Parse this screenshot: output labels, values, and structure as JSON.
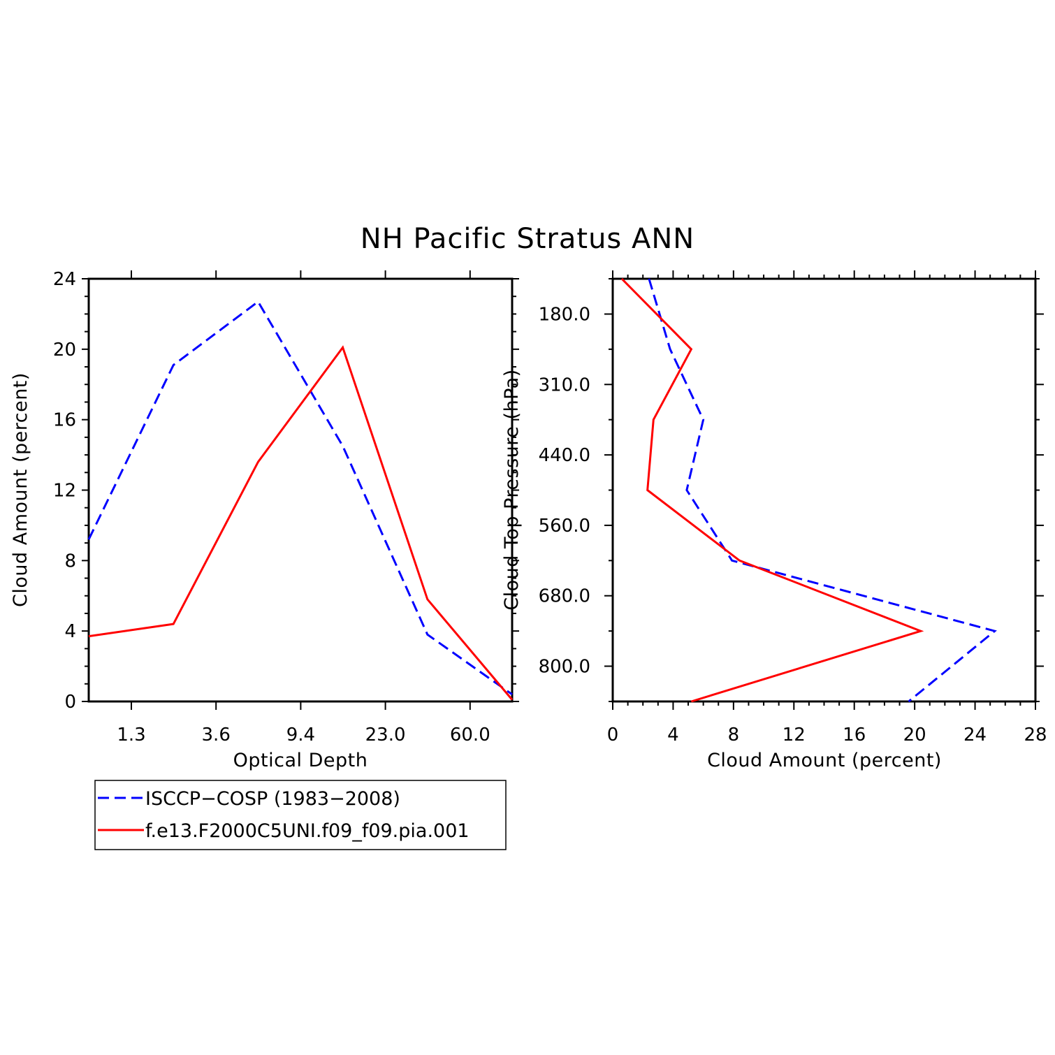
{
  "title": "NH Pacific Stratus ANN",
  "colors": {
    "obs": "#0000ff",
    "model": "#ff0000",
    "axis": "#000000"
  },
  "legend": {
    "entries": [
      {
        "label": "ISCCP−COSP (1983−2008)",
        "color": "#0000ff",
        "style": "dashed"
      },
      {
        "label": "f.e13.F2000C5UNI.f09_f09.pia.001",
        "color": "#ff0000",
        "style": "solid"
      }
    ]
  },
  "chart_data": [
    {
      "type": "line",
      "title": "NH Pacific Stratus ANN",
      "xlabel": "Optical Depth",
      "ylabel": "Cloud Amount (percent)",
      "x_tick_labels": [
        "1.3",
        "3.6",
        "9.4",
        "23.0",
        "60.0"
      ],
      "x_bin_index": [
        0,
        1,
        2,
        3,
        4,
        5
      ],
      "ylim": [
        0,
        24
      ],
      "y_ticks": [
        0,
        4,
        8,
        12,
        16,
        20,
        24
      ],
      "series": [
        {
          "name": "ISCCP−COSP (1983−2008)",
          "style": "dashed",
          "values": [
            9.2,
            19.1,
            22.7,
            14.5,
            3.8,
            0.4
          ]
        },
        {
          "name": "f.e13.F2000C5UNI.f09_f09.pia.001",
          "style": "solid",
          "values": [
            3.7,
            4.4,
            13.6,
            20.1,
            5.8,
            0.1
          ]
        }
      ]
    },
    {
      "type": "line",
      "xlabel": "Cloud Amount (percent)",
      "ylabel": "Cloud Top Pressure (hPa)",
      "xlim": [
        0,
        28
      ],
      "x_ticks": [
        0,
        4,
        8,
        12,
        16,
        20,
        24,
        28
      ],
      "y_tick_labels": [
        "180.0",
        "310.0",
        "440.0",
        "560.0",
        "680.0",
        "800.0"
      ],
      "y_bin_index": [
        0,
        1,
        2,
        3,
        4,
        5,
        6
      ],
      "series": [
        {
          "name": "ISCCP−COSP (1983−2008)",
          "style": "dashed",
          "values": [
            2.4,
            3.8,
            6.0,
            4.9,
            7.9,
            25.3,
            19.6
          ]
        },
        {
          "name": "f.e13.F2000C5UNI.f09_f09.pia.001",
          "style": "solid",
          "values": [
            0.6,
            5.2,
            2.7,
            2.3,
            8.4,
            20.4,
            5.2
          ]
        }
      ]
    }
  ]
}
